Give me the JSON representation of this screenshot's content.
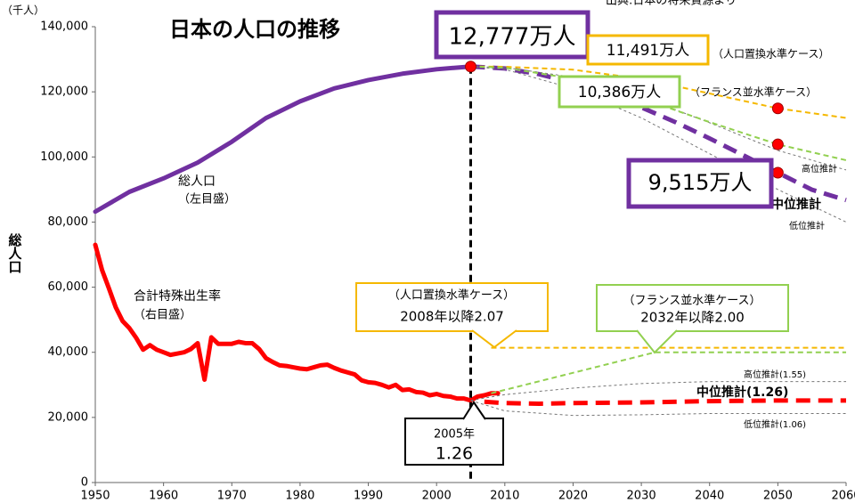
{
  "chart_data": {
    "type": "line",
    "title": "日本の人口の推移",
    "source": "出典:日本の将来資源より",
    "y_unit": "（千人）",
    "y_label": "総人口",
    "xlim": [
      1950,
      2060
    ],
    "xticks": [
      1950,
      1960,
      1970,
      1980,
      1990,
      2000,
      2010,
      2020,
      2030,
      2040,
      2050,
      2060
    ],
    "ylim": [
      0,
      140000
    ],
    "yticks": [
      0,
      {
        "value": 20000,
        "label": "20,000"
      },
      {
        "value": 40000,
        "label": "40,000"
      },
      {
        "value": 60000,
        "label": "60,000"
      },
      {
        "value": 80000,
        "label": "80,000"
      },
      {
        "value": 100000,
        "label": "100,000"
      },
      {
        "value": 120000,
        "label": "120,000"
      },
      {
        "value": 140000,
        "label": "140,000"
      }
    ],
    "y2lim": [
      0,
      7
    ],
    "vline_x": 2005,
    "annotations": [
      "（左目盛）",
      "（右目盛）",
      "（人口置換水準ケース）",
      "（フランス並水準ケース）",
      "（人口置換水準ケース）",
      "（フランス並水準ケース）",
      "2005年"
    ],
    "series": [
      {
        "name": "総人口",
        "color": "#7030a0",
        "style": "solid",
        "axis": "y",
        "x": [
          1950,
          1955,
          1960,
          1965,
          1970,
          1975,
          1980,
          1985,
          1990,
          1995,
          2000,
          2005
        ],
        "values": [
          83200,
          89276,
          93419,
          98275,
          104665,
          111940,
          117060,
          121049,
          123611,
          125570,
          126926,
          127768
        ],
        "value_labels": [
          null,
          null,
          null,
          null,
          null,
          null,
          null,
          null,
          null,
          null,
          null,
          "12,777万人"
        ]
      },
      {
        "name": "中位推計",
        "color": "#7030a0",
        "style": "dashed",
        "axis": "y",
        "x": [
          2005,
          2010,
          2015,
          2020,
          2025,
          2030,
          2035,
          2040,
          2045,
          2050,
          2055,
          2060
        ],
        "values": [
          127768,
          127176,
          125430,
          122735,
          119270,
          115224,
          110679,
          105695,
          100443,
          95152,
          89930,
          86737
        ],
        "value_labels": [
          null,
          null,
          null,
          null,
          null,
          null,
          null,
          null,
          null,
          "9,515万人",
          null,
          null
        ]
      },
      {
        "name": "高位推計",
        "color": "#777777",
        "style": "thin",
        "axis": "y",
        "x": [
          2005,
          2010,
          2020,
          2030,
          2040,
          2050,
          2060
        ],
        "values": [
          127768,
          127500,
          124500,
          118500,
          110500,
          102000,
          96000
        ]
      },
      {
        "name": "低位推計",
        "color": "#777777",
        "style": "thin",
        "axis": "y",
        "x": [
          2005,
          2010,
          2020,
          2030,
          2040,
          2050,
          2060
        ],
        "values": [
          127768,
          126900,
          121000,
          112000,
          101000,
          90000,
          80000
        ]
      },
      {
        "color": "#f5b800",
        "style": "case",
        "axis": "y",
        "x": [
          2005,
          2010,
          2020,
          2030,
          2040,
          2050,
          2060
        ],
        "values": [
          127768,
          127700,
          126800,
          124000,
          119500,
          114910,
          112000
        ],
        "value_labels": [
          null,
          null,
          null,
          null,
          null,
          "11,491万人",
          null
        ]
      },
      {
        "color": "#92d050",
        "style": "case",
        "axis": "y",
        "x": [
          2005,
          2010,
          2020,
          2030,
          2040,
          2050,
          2060
        ],
        "values": [
          127768,
          127400,
          124000,
          118000,
          110700,
          103860,
          99000
        ],
        "value_labels": [
          null,
          null,
          null,
          null,
          null,
          "10,386万人",
          null
        ]
      },
      {
        "name": "合計特殊出生率",
        "color": "#ff0000",
        "style": "solid",
        "axis": "y2",
        "x": [
          1950,
          1951,
          1952,
          1953,
          1954,
          1955,
          1956,
          1957,
          1958,
          1959,
          1960,
          1961,
          1962,
          1963,
          1964,
          1965,
          1966,
          1967,
          1968,
          1969,
          1970,
          1971,
          1972,
          1973,
          1974,
          1975,
          1976,
          1977,
          1978,
          1979,
          1980,
          1981,
          1982,
          1983,
          1984,
          1985,
          1986,
          1987,
          1988,
          1989,
          1990,
          1991,
          1992,
          1993,
          1994,
          1995,
          1996,
          1997,
          1998,
          1999,
          2000,
          2001,
          2002,
          2003,
          2004,
          2005,
          2006,
          2007,
          2008,
          2009
        ],
        "values": [
          3.65,
          3.26,
          2.98,
          2.69,
          2.48,
          2.37,
          2.22,
          2.04,
          2.11,
          2.04,
          2.0,
          1.96,
          1.98,
          2.0,
          2.05,
          2.14,
          1.58,
          2.23,
          2.13,
          2.13,
          2.13,
          2.16,
          2.14,
          2.14,
          2.05,
          1.91,
          1.85,
          1.8,
          1.79,
          1.77,
          1.75,
          1.74,
          1.77,
          1.8,
          1.81,
          1.76,
          1.72,
          1.69,
          1.66,
          1.57,
          1.54,
          1.53,
          1.5,
          1.46,
          1.5,
          1.42,
          1.43,
          1.39,
          1.38,
          1.34,
          1.36,
          1.33,
          1.32,
          1.29,
          1.29,
          1.26,
          1.32,
          1.34,
          1.37,
          1.37
        ],
        "value_labels": [
          null,
          null,
          null,
          null,
          null,
          null,
          null,
          null,
          null,
          null,
          null,
          null,
          null,
          null,
          null,
          null,
          null,
          null,
          null,
          null,
          null,
          null,
          null,
          null,
          null,
          null,
          null,
          null,
          null,
          null,
          null,
          null,
          null,
          null,
          null,
          null,
          null,
          null,
          null,
          null,
          null,
          null,
          null,
          null,
          null,
          null,
          null,
          null,
          null,
          null,
          null,
          null,
          null,
          null,
          null,
          "1.26",
          null,
          null,
          null,
          null
        ]
      },
      {
        "name": "中位推計(1.26)",
        "color": "#ff0000",
        "style": "dashed",
        "axis": "y2",
        "x": [
          2007,
          2010,
          2015,
          2020,
          2030,
          2040,
          2050,
          2060
        ],
        "values": [
          1.24,
          1.22,
          1.21,
          1.22,
          1.23,
          1.25,
          1.26,
          1.26
        ]
      },
      {
        "name": "高位推計(1.55)",
        "color": "#777777",
        "style": "thin",
        "axis": "y2",
        "x": [
          2005,
          2010,
          2020,
          2030,
          2040,
          2060
        ],
        "values": [
          1.26,
          1.35,
          1.45,
          1.52,
          1.55,
          1.55
        ]
      },
      {
        "name": "低位推計(1.06)",
        "color": "#777777",
        "style": "thin",
        "axis": "y2",
        "x": [
          2005,
          2010,
          2020,
          2030,
          2040,
          2060
        ],
        "values": [
          1.26,
          1.1,
          1.03,
          1.04,
          1.06,
          1.06
        ]
      },
      {
        "color": "#f5b800",
        "style": "case",
        "axis": "y2",
        "x": [
          2008,
          2060
        ],
        "values": [
          2.07,
          2.07
        ],
        "value_labels": [
          "2008年以降2.07",
          null
        ]
      },
      {
        "color": "#92d050",
        "style": "case",
        "axis": "y2",
        "x": [
          2008,
          2032,
          2060
        ],
        "values": [
          1.37,
          2.0,
          2.0
        ],
        "value_labels": [
          null,
          "2032年以降2.00",
          null
        ]
      }
    ]
  }
}
